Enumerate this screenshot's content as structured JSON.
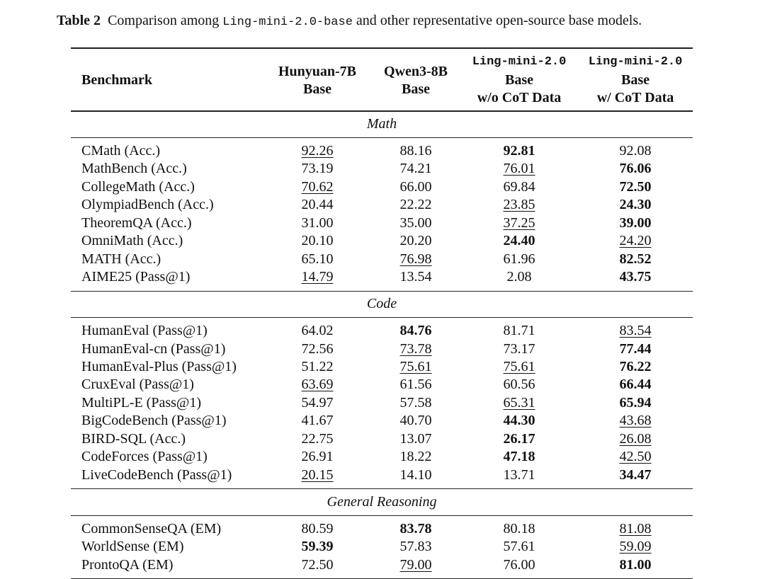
{
  "caption": {
    "label": "Table 2",
    "before": "Comparison among",
    "code": "Ling-mini-2.0-base",
    "after": "and other representative open-source base models."
  },
  "table": {
    "first_header": "Benchmark",
    "columns": [
      {
        "name": "Hunyuan-7B",
        "code": false,
        "sub": [
          "Base"
        ]
      },
      {
        "name": "Qwen3-8B",
        "code": false,
        "sub": [
          "Base"
        ]
      },
      {
        "name": "Ling-mini-2.0",
        "code": true,
        "sub": [
          "Base",
          "w/o CoT Data"
        ]
      },
      {
        "name": "Ling-mini-2.0",
        "code": true,
        "sub": [
          "Base",
          "w/ CoT Data"
        ]
      }
    ],
    "sections": [
      {
        "title": "Math",
        "rows": [
          {
            "name": "CMath (Acc.)",
            "cells": [
              "92.26",
              "88.16",
              "92.81",
              "92.08"
            ],
            "bold": [
              2
            ],
            "underline": [
              0
            ]
          },
          {
            "name": "MathBench (Acc.)",
            "cells": [
              "73.19",
              "74.21",
              "76.01",
              "76.06"
            ],
            "bold": [
              3
            ],
            "underline": [
              2
            ]
          },
          {
            "name": "CollegeMath (Acc.)",
            "cells": [
              "70.62",
              "66.00",
              "69.84",
              "72.50"
            ],
            "bold": [
              3
            ],
            "underline": [
              0
            ]
          },
          {
            "name": "OlympiadBench (Acc.)",
            "cells": [
              "20.44",
              "22.22",
              "23.85",
              "24.30"
            ],
            "bold": [
              3
            ],
            "underline": [
              2
            ]
          },
          {
            "name": "TheoremQA (Acc.)",
            "cells": [
              "31.00",
              "35.00",
              "37.25",
              "39.00"
            ],
            "bold": [
              3
            ],
            "underline": [
              2
            ]
          },
          {
            "name": "OmniMath (Acc.)",
            "cells": [
              "20.10",
              "20.20",
              "24.40",
              "24.20"
            ],
            "bold": [
              2
            ],
            "underline": [
              3
            ]
          },
          {
            "name": "MATH (Acc.)",
            "cells": [
              "65.10",
              "76.98",
              "61.96",
              "82.52"
            ],
            "bold": [
              3
            ],
            "underline": [
              1
            ]
          },
          {
            "name": "AIME25 (Pass@1)",
            "cells": [
              "14.79",
              "13.54",
              "2.08",
              "43.75"
            ],
            "bold": [
              3
            ],
            "underline": [
              0
            ]
          }
        ]
      },
      {
        "title": "Code",
        "rows": [
          {
            "name": "HumanEval (Pass@1)",
            "cells": [
              "64.02",
              "84.76",
              "81.71",
              "83.54"
            ],
            "bold": [
              1
            ],
            "underline": [
              3
            ]
          },
          {
            "name": "HumanEval-cn (Pass@1)",
            "cells": [
              "72.56",
              "73.78",
              "73.17",
              "77.44"
            ],
            "bold": [
              3
            ],
            "underline": [
              1
            ]
          },
          {
            "name": "HumanEval-Plus (Pass@1)",
            "cells": [
              "51.22",
              "75.61",
              "75.61",
              "76.22"
            ],
            "bold": [
              3
            ],
            "underline": [
              1,
              2
            ]
          },
          {
            "name": "CruxEval (Pass@1)",
            "cells": [
              "63.69",
              "61.56",
              "60.56",
              "66.44"
            ],
            "bold": [
              3
            ],
            "underline": [
              0
            ]
          },
          {
            "name": "MultiPL-E (Pass@1)",
            "cells": [
              "54.97",
              "57.58",
              "65.31",
              "65.94"
            ],
            "bold": [
              3
            ],
            "underline": [
              2
            ]
          },
          {
            "name": "BigCodeBench (Pass@1)",
            "cells": [
              "41.67",
              "40.70",
              "44.30",
              "43.68"
            ],
            "bold": [
              2
            ],
            "underline": [
              3
            ]
          },
          {
            "name": "BIRD-SQL (Acc.)",
            "cells": [
              "22.75",
              "13.07",
              "26.17",
              "26.08"
            ],
            "bold": [
              2
            ],
            "underline": [
              3
            ]
          },
          {
            "name": "CodeForces (Pass@1)",
            "cells": [
              "26.91",
              "18.22",
              "47.18",
              "42.50"
            ],
            "bold": [
              2
            ],
            "underline": [
              3
            ]
          },
          {
            "name": "LiveCodeBench (Pass@1)",
            "cells": [
              "20.15",
              "14.10",
              "13.71",
              "34.47"
            ],
            "bold": [
              3
            ],
            "underline": [
              0
            ]
          }
        ]
      },
      {
        "title": "General Reasoning",
        "rows": [
          {
            "name": "CommonSenseQA (EM)",
            "cells": [
              "80.59",
              "83.78",
              "80.18",
              "81.08"
            ],
            "bold": [
              1
            ],
            "underline": [
              3
            ]
          },
          {
            "name": "WorldSense (EM)",
            "cells": [
              "59.39",
              "57.83",
              "57.61",
              "59.09"
            ],
            "bold": [
              0
            ],
            "underline": [
              3
            ]
          },
          {
            "name": "ProntoQA (EM)",
            "cells": [
              "72.50",
              "79.00",
              "76.00",
              "81.00"
            ],
            "bold": [
              3
            ],
            "underline": [
              1
            ]
          }
        ]
      }
    ]
  }
}
